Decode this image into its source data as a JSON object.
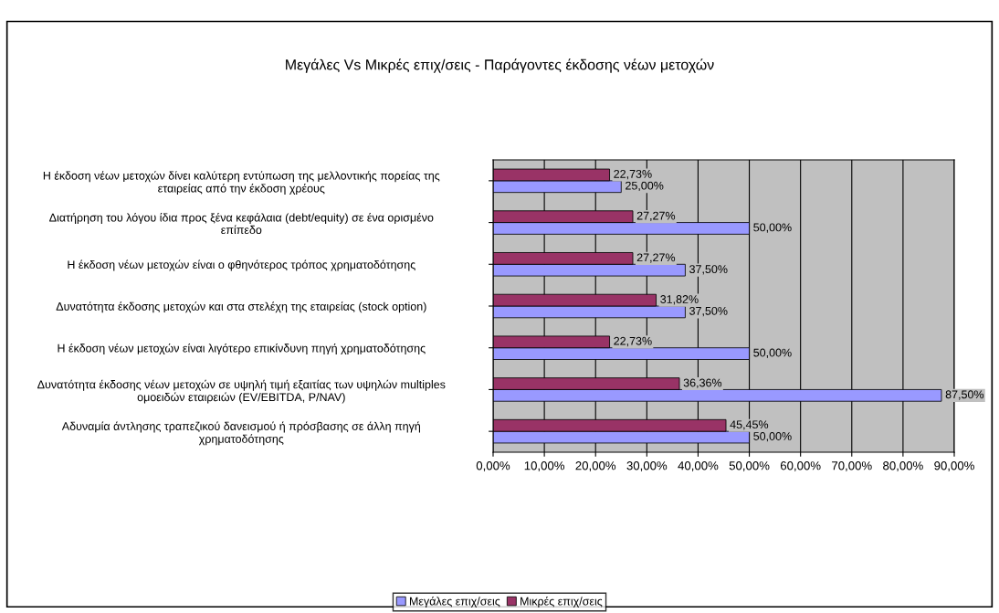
{
  "chart_data": {
    "type": "bar",
    "orientation": "horizontal",
    "title": "Μεγάλες Vs Μικρές επιχ/σεις - Παράγοντες έκδοσης νέων μετοχών",
    "categories": [
      "Η έκδοση νέων μετοχών δίνει καλύτερη εντύπωση της μελλοντικής πορείας της\nεταιρείας από την έκδοση χρέους",
      "Διατήρηση του λόγου ίδια προς ξένα κεφάλαια (debt/equity) σε ένα ορισμένο\nεπίπεδο",
      "Η έκδοση νέων μετοχών είναι ο φθηνότερος τρόπος χρηματοδότησης",
      "Δυνατότητα έκδοσης μετοχών και στα στελέχη της εταιρείας (stock option)",
      "Η έκδοση νέων μετοχών είναι λιγότερο επικίνδυνη πηγή χρηματοδότησης",
      "Δυνατότητα έκδοσης νέων μετοχών σε υψηλή τιμή εξαιτίας των υψηλών multiples\nομοειδών εταιρειών (EV/EBITDA, P/NAV)",
      "Αδυναμία άντλησης τραπεζικού δανεισμού ή πρόσβασης σε άλλη πηγή\nχρηματοδότησης"
    ],
    "series": [
      {
        "name": "Μεγάλες επιχ/σεις",
        "color": "#9999ff",
        "values": [
          25.0,
          50.0,
          37.5,
          37.5,
          50.0,
          87.5,
          50.0
        ],
        "value_labels": [
          "25,00%",
          "50,00%",
          "37,50%",
          "37,50%",
          "50,00%",
          "87,50%",
          "50,00%"
        ]
      },
      {
        "name": "Μικρές επιχ/σεις",
        "color": "#993366",
        "values": [
          22.73,
          27.27,
          27.27,
          31.82,
          22.73,
          36.36,
          45.45
        ],
        "value_labels": [
          "22,73%",
          "27,27%",
          "27,27%",
          "31,82%",
          "22,73%",
          "36,36%",
          "45,45%"
        ]
      }
    ],
    "xlim": [
      0,
      90
    ],
    "xticks": [
      {
        "value": 0,
        "label": "0,00%"
      },
      {
        "value": 10,
        "label": "10,00%"
      },
      {
        "value": 20,
        "label": "20,00%"
      },
      {
        "value": 30,
        "label": "30,00%"
      },
      {
        "value": 40,
        "label": "40,00%"
      },
      {
        "value": 50,
        "label": "50,00%"
      },
      {
        "value": 60,
        "label": "60,00%"
      },
      {
        "value": 70,
        "label": "70,00%"
      },
      {
        "value": 80,
        "label": "80,00%"
      },
      {
        "value": 90,
        "label": "90,00%"
      }
    ],
    "grid": "x",
    "legend": "bottom"
  }
}
